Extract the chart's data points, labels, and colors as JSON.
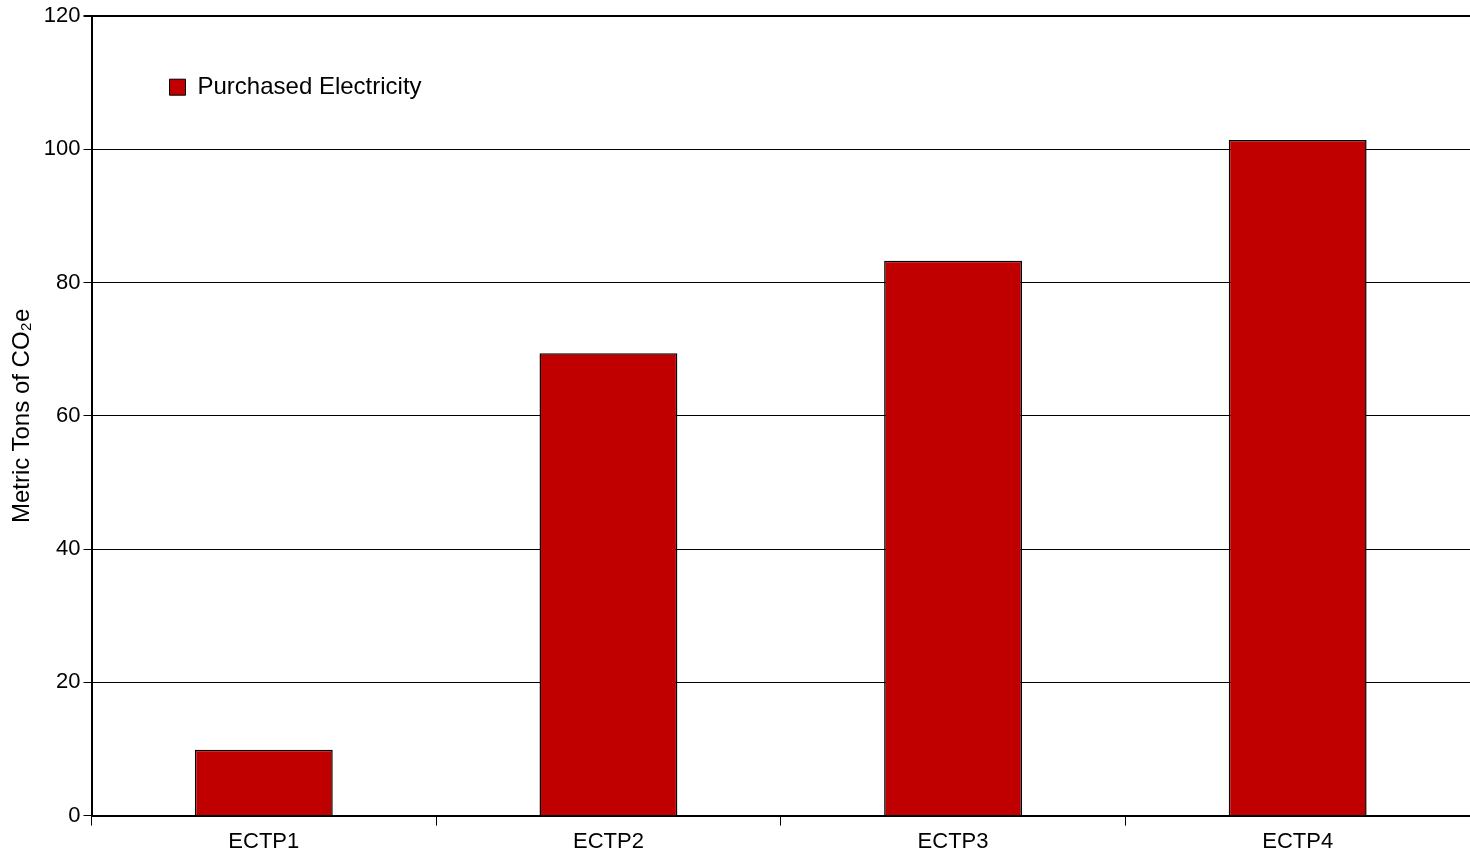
{
  "chart_data": {
    "type": "bar",
    "ylabel": "Metric Tons of CO₂e",
    "categories": [
      "ECTP1",
      "ECTP2",
      "ECTP3",
      "ECTP4"
    ],
    "series": [
      {
        "name": "Purchased Electricity",
        "color": "#c00000",
        "values": [
          9.9,
          69.4,
          83.3,
          101.4
        ]
      }
    ],
    "ylim": [
      0,
      120
    ],
    "yticks": [
      0,
      20,
      40,
      60,
      80,
      100,
      120
    ],
    "grid": "y",
    "legend": "top left"
  }
}
